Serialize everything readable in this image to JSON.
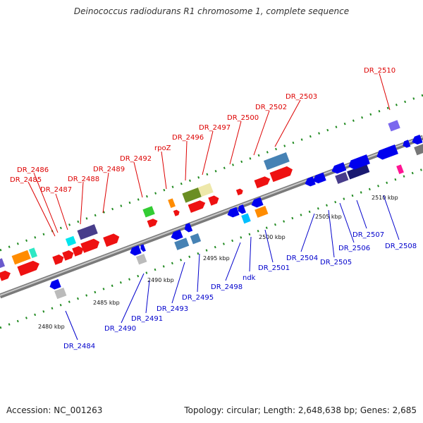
{
  "title": "Deinococcus radiodurans R1 chromosome 1, complete sequence",
  "footer": {
    "accession": "Accession: NC_001263",
    "summary": "Topology: circular; Length: 2,648,638 bp; Genes: 2,685"
  },
  "colors": {
    "forward_label": "#dd0000",
    "reverse_label": "#0000cc",
    "backbone": "#999999",
    "tick": "#228b22"
  },
  "ticks": [
    {
      "label": "2480 kbp"
    },
    {
      "label": "2485 kbp"
    },
    {
      "label": "2490 kbp"
    },
    {
      "label": "2495 kbp"
    },
    {
      "label": "2500 kbp"
    },
    {
      "label": "2505 kbp"
    },
    {
      "label": "2510 kbp"
    }
  ],
  "labels_forward": [
    {
      "text": "DR_2485"
    },
    {
      "text": "DR_2486"
    },
    {
      "text": "DR_2487"
    },
    {
      "text": "DR_2488"
    },
    {
      "text": "DR_2489"
    },
    {
      "text": "DR_2492"
    },
    {
      "text": "rpoZ"
    },
    {
      "text": "DR_2496"
    },
    {
      "text": "DR_2497"
    },
    {
      "text": "DR_2500"
    },
    {
      "text": "DR_2502"
    },
    {
      "text": "DR_2503"
    },
    {
      "text": "DR_2510"
    }
  ],
  "labels_reverse": [
    {
      "text": "DR_2484"
    },
    {
      "text": "DR_2490"
    },
    {
      "text": "DR_2491"
    },
    {
      "text": "DR_2493"
    },
    {
      "text": "DR_2495"
    },
    {
      "text": "DR_2498"
    },
    {
      "text": "ndk"
    },
    {
      "text": "DR_2501"
    },
    {
      "text": "DR_2504"
    },
    {
      "text": "DR_2505"
    },
    {
      "text": "DR_2506"
    },
    {
      "text": "DR_2507"
    },
    {
      "text": "DR_2508"
    }
  ]
}
